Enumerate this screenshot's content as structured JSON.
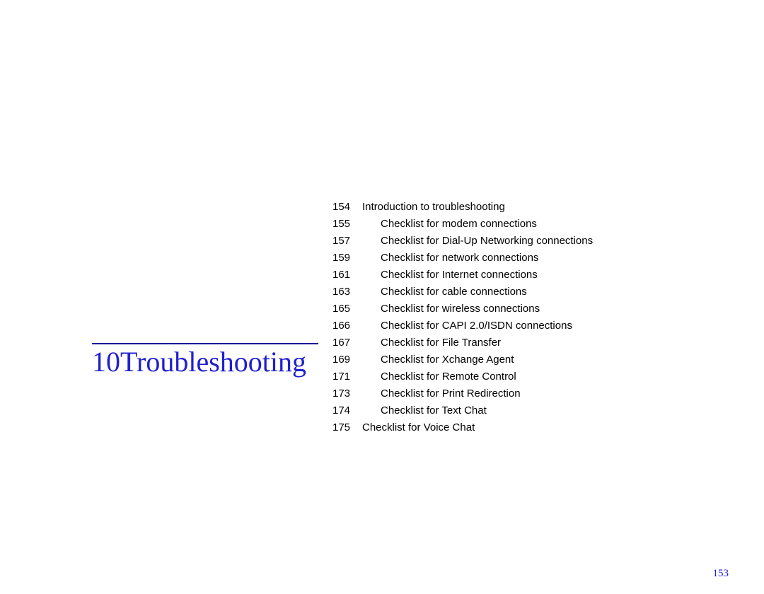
{
  "chapter": {
    "heading": "10Troubleshooting",
    "rule_color": "#1a1a9a",
    "heading_color": "#2020d0",
    "heading_font": "Times New Roman",
    "heading_fontsize": 40
  },
  "toc": {
    "text_color": "#000000",
    "fontsize": 15,
    "line_height": 24,
    "entries": [
      {
        "page": "154",
        "title": "Introduction to troubleshooting",
        "indent": false
      },
      {
        "page": "155",
        "title": "Checklist for modem connections",
        "indent": true
      },
      {
        "page": "157",
        "title": "Checklist for Dial-Up Networking connections",
        "indent": true
      },
      {
        "page": "159",
        "title": "Checklist for network connections",
        "indent": true
      },
      {
        "page": "161",
        "title": "Checklist for Internet connections",
        "indent": true
      },
      {
        "page": "163",
        "title": "Checklist for cable connections",
        "indent": true
      },
      {
        "page": "165",
        "title": "Checklist for wireless connections",
        "indent": true
      },
      {
        "page": "166",
        "title": "Checklist for CAPI 2.0/ISDN connections",
        "indent": true
      },
      {
        "page": "167",
        "title": "Checklist for File Transfer",
        "indent": true
      },
      {
        "page": "169",
        "title": "Checklist for Xchange Agent",
        "indent": true
      },
      {
        "page": "171",
        "title": "Checklist for Remote Control",
        "indent": true
      },
      {
        "page": "173",
        "title": "Checklist for Print Redirection",
        "indent": true
      },
      {
        "page": "174",
        "title": "Checklist for Text Chat",
        "indent": true
      },
      {
        "page": "175",
        "title": "Checklist for Voice Chat",
        "indent": false
      }
    ]
  },
  "footer": {
    "page_number": "153",
    "color": "#2020d0"
  }
}
